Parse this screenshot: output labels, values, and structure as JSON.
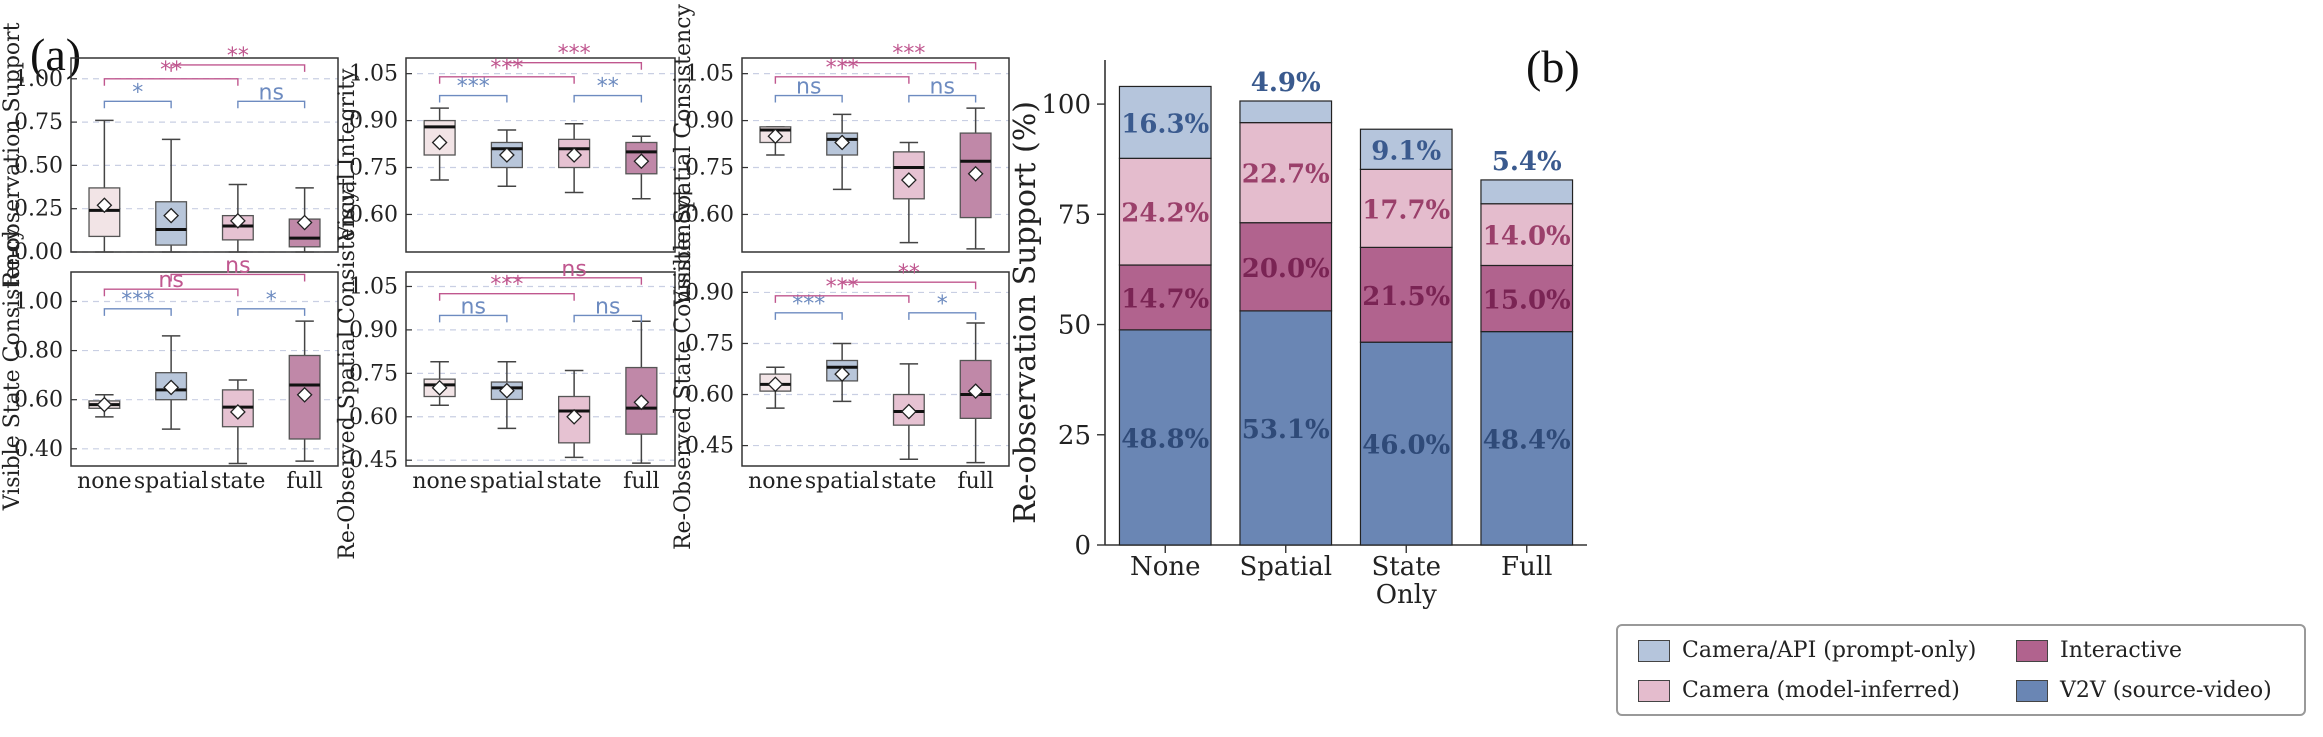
{
  "panel_labels": {
    "a": "(a)",
    "b": "(b)"
  },
  "colors": {
    "none": "#f2e4e6",
    "spatial": "#b8c6da",
    "state": "#e6c2d2",
    "full": "#c088a8",
    "sig_blue": "#6d8bc0",
    "sig_pink": "#c0578f",
    "v2v": "#6a86b4",
    "interactive": "#b1638e",
    "cam_inferred": "#e4bccd",
    "cam_api": "#b5c5dc"
  },
  "chart_data": [
    {
      "type": "box",
      "ylabel": "Re-observation Support",
      "categories": [
        "none",
        "spatial",
        "state",
        "full"
      ],
      "ylim": [
        0,
        1.12
      ],
      "yticks": [
        "0.00",
        "0.25",
        "0.50",
        "0.75",
        "1.00"
      ],
      "ytick_values": [
        0,
        0.25,
        0.5,
        0.75,
        1.0
      ],
      "boxes": [
        {
          "min": 0.0,
          "q1": 0.09,
          "median": 0.24,
          "q3": 0.37,
          "max": 0.76,
          "mean": 0.27
        },
        {
          "min": 0.0,
          "q1": 0.04,
          "median": 0.13,
          "q3": 0.29,
          "max": 0.65,
          "mean": 0.21
        },
        {
          "min": 0.0,
          "q1": 0.07,
          "median": 0.15,
          "q3": 0.21,
          "max": 0.39,
          "mean": 0.18
        },
        {
          "min": 0.0,
          "q1": 0.03,
          "median": 0.08,
          "q3": 0.19,
          "max": 0.37,
          "mean": 0.17
        }
      ],
      "significance": [
        {
          "from": 0,
          "to": 1,
          "label": "*",
          "color": "blue",
          "y": 0.87
        },
        {
          "from": 2,
          "to": 3,
          "label": "ns",
          "color": "blue",
          "y": 0.87
        },
        {
          "from": 0,
          "to": 2,
          "label": "**",
          "color": "pink",
          "y": 1.0
        },
        {
          "from": 1,
          "to": 3,
          "label": "**",
          "color": "pink",
          "y": 1.08
        }
      ]
    },
    {
      "type": "box",
      "ylabel": "Visual Integrity",
      "categories": [
        "none",
        "spatial",
        "state",
        "full"
      ],
      "ylim": [
        0.48,
        1.1
      ],
      "yticks": [
        "0.60",
        "0.75",
        "0.90",
        "1.05"
      ],
      "ytick_values": [
        0.6,
        0.75,
        0.9,
        1.05
      ],
      "boxes": [
        {
          "min": 0.71,
          "q1": 0.79,
          "median": 0.88,
          "q3": 0.9,
          "max": 0.94,
          "mean": 0.83
        },
        {
          "min": 0.69,
          "q1": 0.75,
          "median": 0.81,
          "q3": 0.83,
          "max": 0.87,
          "mean": 0.79
        },
        {
          "min": 0.67,
          "q1": 0.75,
          "median": 0.81,
          "q3": 0.84,
          "max": 0.89,
          "mean": 0.79
        },
        {
          "min": 0.65,
          "q1": 0.73,
          "median": 0.8,
          "q3": 0.83,
          "max": 0.85,
          "mean": 0.77
        }
      ],
      "significance": [
        {
          "from": 0,
          "to": 1,
          "label": "***",
          "color": "blue",
          "y": 0.98
        },
        {
          "from": 2,
          "to": 3,
          "label": "**",
          "color": "blue",
          "y": 0.98
        },
        {
          "from": 0,
          "to": 2,
          "label": "***",
          "color": "pink",
          "y": 1.04
        },
        {
          "from": 1,
          "to": 3,
          "label": "***",
          "color": "pink",
          "y": 1.085
        }
      ]
    },
    {
      "type": "box",
      "ylabel": "Visible Spatial Consistency",
      "categories": [
        "none",
        "spatial",
        "state",
        "full"
      ],
      "ylim": [
        0.48,
        1.1
      ],
      "yticks": [
        "0.60",
        "0.75",
        "0.90",
        "1.05"
      ],
      "ytick_values": [
        0.6,
        0.75,
        0.9,
        1.05
      ],
      "boxes": [
        {
          "min": 0.79,
          "q1": 0.83,
          "median": 0.87,
          "q3": 0.88,
          "max": 0.88,
          "mean": 0.85
        },
        {
          "min": 0.68,
          "q1": 0.79,
          "median": 0.84,
          "q3": 0.86,
          "max": 0.92,
          "mean": 0.83
        },
        {
          "min": 0.51,
          "q1": 0.65,
          "median": 0.75,
          "q3": 0.8,
          "max": 0.83,
          "mean": 0.71
        },
        {
          "min": 0.49,
          "q1": 0.59,
          "median": 0.77,
          "q3": 0.86,
          "max": 0.94,
          "mean": 0.73
        }
      ],
      "significance": [
        {
          "from": 0,
          "to": 1,
          "label": "ns",
          "color": "blue",
          "y": 0.98
        },
        {
          "from": 2,
          "to": 3,
          "label": "ns",
          "color": "blue",
          "y": 0.98
        },
        {
          "from": 0,
          "to": 2,
          "label": "***",
          "color": "pink",
          "y": 1.04
        },
        {
          "from": 1,
          "to": 3,
          "label": "***",
          "color": "pink",
          "y": 1.085
        }
      ]
    },
    {
      "type": "box",
      "ylabel": "Visible State Consistency",
      "categories": [
        "none",
        "spatial",
        "state",
        "full"
      ],
      "ylim": [
        0.33,
        1.12
      ],
      "yticks": [
        "0.40",
        "0.60",
        "0.80",
        "1.00"
      ],
      "ytick_values": [
        0.4,
        0.6,
        0.8,
        1.0
      ],
      "boxes": [
        {
          "min": 0.53,
          "q1": 0.565,
          "median": 0.58,
          "q3": 0.595,
          "max": 0.62,
          "mean": 0.58
        },
        {
          "min": 0.48,
          "q1": 0.6,
          "median": 0.64,
          "q3": 0.71,
          "max": 0.86,
          "mean": 0.65
        },
        {
          "min": 0.34,
          "q1": 0.49,
          "median": 0.57,
          "q3": 0.64,
          "max": 0.68,
          "mean": 0.55
        },
        {
          "min": 0.35,
          "q1": 0.44,
          "median": 0.66,
          "q3": 0.78,
          "max": 0.92,
          "mean": 0.62
        }
      ],
      "significance": [
        {
          "from": 0,
          "to": 1,
          "label": "***",
          "color": "blue",
          "y": 0.97
        },
        {
          "from": 2,
          "to": 3,
          "label": "*",
          "color": "blue",
          "y": 0.97
        },
        {
          "from": 0,
          "to": 2,
          "label": "ns",
          "color": "pink",
          "y": 1.05
        },
        {
          "from": 1,
          "to": 3,
          "label": "ns",
          "color": "pink",
          "y": 1.11
        }
      ]
    },
    {
      "type": "box",
      "ylabel": "Re-Observed Spatial Consistency†",
      "categories": [
        "none",
        "spatial",
        "state",
        "full"
      ],
      "ylim": [
        0.43,
        1.1
      ],
      "yticks": [
        "0.45",
        "0.60",
        "0.75",
        "0.90",
        "1.05"
      ],
      "ytick_values": [
        0.45,
        0.6,
        0.75,
        0.9,
        1.05
      ],
      "boxes": [
        {
          "min": 0.64,
          "q1": 0.67,
          "median": 0.71,
          "q3": 0.73,
          "max": 0.79,
          "mean": 0.7
        },
        {
          "min": 0.56,
          "q1": 0.66,
          "median": 0.7,
          "q3": 0.72,
          "max": 0.79,
          "mean": 0.69
        },
        {
          "min": 0.46,
          "q1": 0.51,
          "median": 0.62,
          "q3": 0.67,
          "max": 0.76,
          "mean": 0.6
        },
        {
          "min": 0.44,
          "q1": 0.54,
          "median": 0.63,
          "q3": 0.77,
          "max": 0.93,
          "mean": 0.65
        }
      ],
      "significance": [
        {
          "from": 0,
          "to": 1,
          "label": "ns",
          "color": "blue",
          "y": 0.95
        },
        {
          "from": 2,
          "to": 3,
          "label": "ns",
          "color": "blue",
          "y": 0.95
        },
        {
          "from": 0,
          "to": 2,
          "label": "***",
          "color": "pink",
          "y": 1.025
        },
        {
          "from": 1,
          "to": 3,
          "label": "ns",
          "color": "pink",
          "y": 1.08
        }
      ]
    },
    {
      "type": "box",
      "ylabel": "Re-Observed State Consistency†",
      "categories": [
        "none",
        "spatial",
        "state",
        "full"
      ],
      "ylim": [
        0.39,
        0.96
      ],
      "yticks": [
        "0.45",
        "0.60",
        "0.75",
        "0.90"
      ],
      "ytick_values": [
        0.45,
        0.6,
        0.75,
        0.9
      ],
      "boxes": [
        {
          "min": 0.56,
          "q1": 0.61,
          "median": 0.63,
          "q3": 0.66,
          "max": 0.68,
          "mean": 0.63
        },
        {
          "min": 0.58,
          "q1": 0.64,
          "median": 0.68,
          "q3": 0.7,
          "max": 0.75,
          "mean": 0.66
        },
        {
          "min": 0.41,
          "q1": 0.51,
          "median": 0.55,
          "q3": 0.6,
          "max": 0.69,
          "mean": 0.55
        },
        {
          "min": 0.4,
          "q1": 0.53,
          "median": 0.6,
          "q3": 0.7,
          "max": 0.81,
          "mean": 0.61
        }
      ],
      "significance": [
        {
          "from": 0,
          "to": 1,
          "label": "***",
          "color": "blue",
          "y": 0.84
        },
        {
          "from": 2,
          "to": 3,
          "label": "*",
          "color": "blue",
          "y": 0.84
        },
        {
          "from": 0,
          "to": 2,
          "label": "***",
          "color": "pink",
          "y": 0.89
        },
        {
          "from": 1,
          "to": 3,
          "label": "**",
          "color": "pink",
          "y": 0.93
        }
      ]
    },
    {
      "type": "stacked_bar",
      "categories": [
        "None",
        "Spatial",
        "State\nOnly",
        "Full"
      ],
      "ylabel": "Re-observation Support (%)",
      "ylim": [
        0,
        110
      ],
      "yticks": [
        "0",
        "25",
        "50",
        "75",
        "100"
      ],
      "ytick_values": [
        0,
        25,
        50,
        75,
        100
      ],
      "series": [
        {
          "name": "V2V (source-video)",
          "values": [
            48.8,
            53.1,
            46.0,
            48.4
          ],
          "labels": [
            "48.8%",
            "53.1%",
            "46.0%",
            "48.4%"
          ]
        },
        {
          "name": "Interactive",
          "values": [
            14.7,
            20.0,
            21.5,
            15.0
          ],
          "labels": [
            "14.7%",
            "20.0%",
            "21.5%",
            "15.0%"
          ]
        },
        {
          "name": "Camera (model-inferred)",
          "values": [
            24.2,
            22.7,
            17.7,
            14.0
          ],
          "labels": [
            "24.2%",
            "22.7%",
            "17.7%",
            "14.0%"
          ]
        },
        {
          "name": "Camera/API (prompt-only)",
          "values": [
            16.3,
            4.9,
            9.1,
            5.4
          ],
          "labels": [
            "16.3%",
            "4.9%",
            "9.1%",
            "5.4%"
          ]
        }
      ]
    }
  ]
}
